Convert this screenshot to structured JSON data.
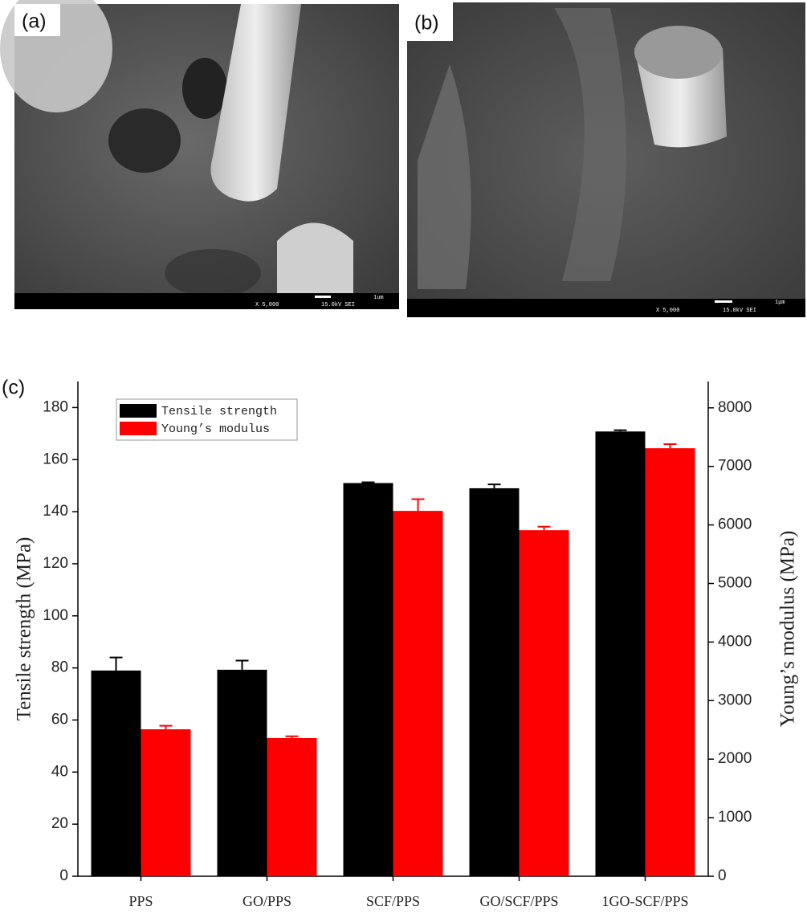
{
  "panels": [
    {
      "label": "(a)",
      "magnification": "X 5,000",
      "settings": "15.0kV SEI",
      "scale": "1um"
    },
    {
      "label": "(b)",
      "magnification": "X 5,000",
      "settings": "15.0kV SEI",
      "scale": "1μm"
    }
  ],
  "chart_data": {
    "type": "bar",
    "panel_label": "(c)",
    "ylabel": "Tensile strength (MPa)",
    "y2label": "Young’s modulus (MPa)",
    "categories": [
      "PPS",
      "GO/PPS",
      "SCF/PPS",
      "GO/SCF/PPS",
      "1GO-SCF/PPS"
    ],
    "series": [
      {
        "name": "Tensile strength",
        "color": "#000000",
        "values": [
          79,
          79.3,
          151,
          149,
          170.8
        ],
        "errors": [
          5,
          3.5,
          0.3,
          1.5,
          0.5
        ]
      },
      {
        "name": "Young’s modulus",
        "color": "#ff0000",
        "axis": "y2",
        "values": [
          2510,
          2360,
          6240,
          5910,
          7310
        ],
        "errors": [
          60,
          30,
          200,
          60,
          70
        ]
      }
    ],
    "ylim": [
      0,
      190
    ],
    "yticks": [
      0,
      20,
      40,
      60,
      80,
      100,
      120,
      140,
      160,
      180
    ],
    "y2lim": [
      0,
      8450
    ],
    "y2ticks": [
      0,
      1000,
      2000,
      3000,
      4000,
      5000,
      6000,
      7000,
      8000
    ],
    "legend": "upper left"
  }
}
